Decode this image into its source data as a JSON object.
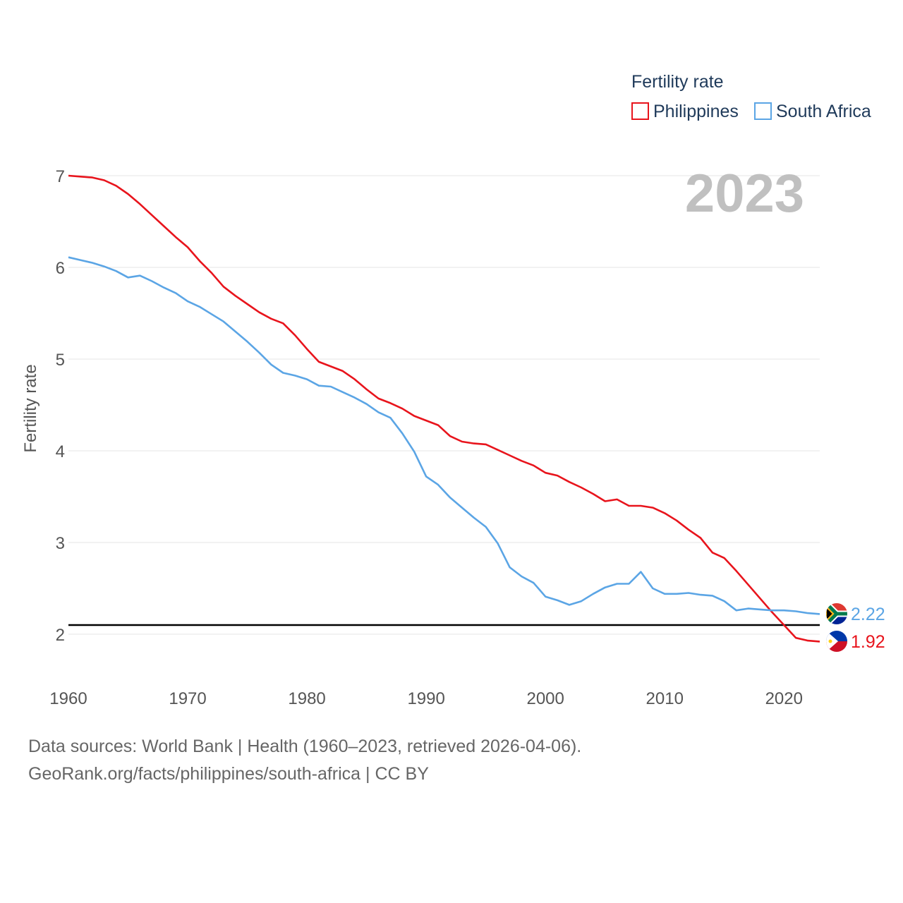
{
  "chart_data": {
    "type": "line",
    "year_label": "2023",
    "ylabel": "Fertility rate",
    "legend": {
      "title": "Fertility rate",
      "placement": "top-right"
    },
    "xlim": [
      1960,
      2023
    ],
    "ylim": [
      1.6,
      7.0
    ],
    "x_ticks": [
      "1960",
      "1970",
      "1980",
      "1990",
      "2000",
      "2010",
      "2020"
    ],
    "y_ticks": [
      "2",
      "3",
      "4",
      "5",
      "6",
      "7"
    ],
    "reference_line": {
      "y": 2.1,
      "color": "#000000"
    },
    "x": [
      1960,
      1961,
      1962,
      1963,
      1964,
      1965,
      1966,
      1967,
      1968,
      1969,
      1970,
      1971,
      1972,
      1973,
      1974,
      1975,
      1976,
      1977,
      1978,
      1979,
      1980,
      1981,
      1982,
      1983,
      1984,
      1985,
      1986,
      1987,
      1988,
      1989,
      1990,
      1991,
      1992,
      1993,
      1994,
      1995,
      1996,
      1997,
      1998,
      1999,
      2000,
      2001,
      2002,
      2003,
      2004,
      2005,
      2006,
      2007,
      2008,
      2009,
      2010,
      2011,
      2012,
      2013,
      2014,
      2015,
      2016,
      2017,
      2018,
      2019,
      2020,
      2021,
      2022,
      2023
    ],
    "series": [
      {
        "name": "Philippines",
        "color": "#e8141c",
        "end_label": "1.92",
        "values": [
          7.0,
          6.99,
          6.98,
          6.95,
          6.89,
          6.8,
          6.69,
          6.57,
          6.45,
          6.33,
          6.22,
          6.07,
          5.94,
          5.79,
          5.69,
          5.6,
          5.51,
          5.44,
          5.39,
          5.26,
          5.11,
          4.97,
          4.92,
          4.87,
          4.78,
          4.67,
          4.57,
          4.52,
          4.46,
          4.38,
          4.33,
          4.28,
          4.16,
          4.1,
          4.08,
          4.07,
          4.01,
          3.95,
          3.89,
          3.84,
          3.76,
          3.73,
          3.66,
          3.6,
          3.53,
          3.45,
          3.47,
          3.4,
          3.4,
          3.38,
          3.32,
          3.24,
          3.14,
          3.05,
          2.89,
          2.83,
          2.69,
          2.54,
          2.39,
          2.24,
          2.1,
          1.96,
          1.93,
          1.92
        ]
      },
      {
        "name": "South Africa",
        "color": "#5ba5e5",
        "end_label": "2.22",
        "values": [
          6.11,
          6.08,
          6.05,
          6.01,
          5.96,
          5.89,
          5.91,
          5.85,
          5.78,
          5.72,
          5.63,
          5.57,
          5.49,
          5.41,
          5.3,
          5.19,
          5.07,
          4.94,
          4.85,
          4.82,
          4.78,
          4.71,
          4.7,
          4.64,
          4.58,
          4.51,
          4.42,
          4.36,
          4.19,
          3.99,
          3.72,
          3.63,
          3.49,
          3.38,
          3.27,
          3.17,
          2.99,
          2.73,
          2.63,
          2.56,
          2.41,
          2.37,
          2.32,
          2.36,
          2.44,
          2.51,
          2.55,
          2.55,
          2.68,
          2.5,
          2.44,
          2.44,
          2.45,
          2.43,
          2.42,
          2.36,
          2.26,
          2.28,
          2.27,
          2.26,
          2.26,
          2.25,
          2.23,
          2.22
        ]
      }
    ]
  },
  "footer": {
    "line1": "Data sources: World Bank | Health (1960–2023, retrieved 2026-04-06).",
    "line2": "GeoRank.org/facts/philippines/south-africa | CC BY"
  }
}
